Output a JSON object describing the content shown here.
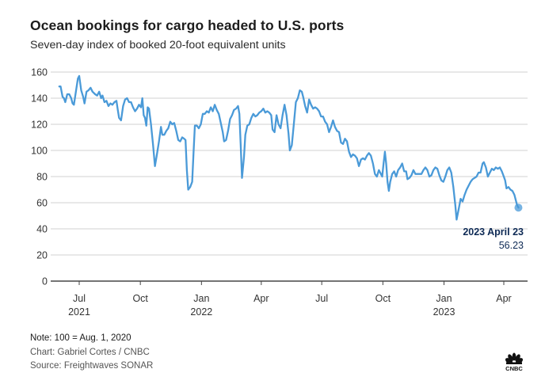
{
  "header": {
    "title": "Ocean bookings for cargo headed to U.S. ports",
    "subtitle": "Seven-day index of booked 20-foot equivalent units"
  },
  "footer": {
    "note": "Note: 100 = Aug. 1, 2020",
    "chart_credit": "Chart: Gabriel Cortes / CNBC",
    "source": "Source: Freightwaves SONAR",
    "logo": "cnbc-peacock-logo",
    "logo_text": "CNBC"
  },
  "colors": {
    "line": "#4a9ad8",
    "annotation": "#0e2a55",
    "grid": "#d0d0d0",
    "axis": "#222222"
  },
  "chart_data": {
    "type": "line",
    "title": "Ocean bookings for cargo headed to U.S. ports",
    "subtitle": "Seven-day index of booked 20-foot equivalent units",
    "xlabel": "",
    "ylabel": "",
    "ylim": [
      0,
      160
    ],
    "yticks": [
      0,
      20,
      40,
      60,
      80,
      100,
      120,
      140,
      160
    ],
    "grid": true,
    "legend": "none",
    "xlim": [
      "2021-05-25",
      "2023-05-05"
    ],
    "xticks": [
      {
        "date": "2021-07-01",
        "label": "Jul",
        "year": "2021"
      },
      {
        "date": "2021-10-01",
        "label": "Oct",
        "year": ""
      },
      {
        "date": "2022-01-01",
        "label": "Jan",
        "year": "2022"
      },
      {
        "date": "2022-04-01",
        "label": "Apr",
        "year": ""
      },
      {
        "date": "2022-07-01",
        "label": "Jul",
        "year": ""
      },
      {
        "date": "2022-10-01",
        "label": "Oct",
        "year": ""
      },
      {
        "date": "2023-01-01",
        "label": "Jan",
        "year": "2023"
      },
      {
        "date": "2023-04-01",
        "label": "Apr",
        "year": ""
      }
    ],
    "series": [
      {
        "name": "Seven-day index",
        "points": [
          [
            "2021-06-01",
            149
          ],
          [
            "2021-06-03",
            149
          ],
          [
            "2021-06-06",
            141
          ],
          [
            "2021-06-08",
            140
          ],
          [
            "2021-06-10",
            137
          ],
          [
            "2021-06-13",
            143
          ],
          [
            "2021-06-16",
            143
          ],
          [
            "2021-06-19",
            140
          ],
          [
            "2021-06-21",
            136
          ],
          [
            "2021-06-23",
            135
          ],
          [
            "2021-06-26",
            145
          ],
          [
            "2021-06-29",
            155
          ],
          [
            "2021-07-01",
            157
          ],
          [
            "2021-07-04",
            146
          ],
          [
            "2021-07-07",
            141
          ],
          [
            "2021-07-09",
            136
          ],
          [
            "2021-07-12",
            145
          ],
          [
            "2021-07-15",
            146
          ],
          [
            "2021-07-18",
            148
          ],
          [
            "2021-07-21",
            145
          ],
          [
            "2021-07-25",
            143
          ],
          [
            "2021-07-28",
            142
          ],
          [
            "2021-07-31",
            145
          ],
          [
            "2021-08-03",
            140
          ],
          [
            "2021-08-05",
            142
          ],
          [
            "2021-08-08",
            137
          ],
          [
            "2021-08-11",
            138
          ],
          [
            "2021-08-14",
            134
          ],
          [
            "2021-08-17",
            136
          ],
          [
            "2021-08-20",
            135
          ],
          [
            "2021-08-23",
            137
          ],
          [
            "2021-08-26",
            138
          ],
          [
            "2021-08-28",
            131
          ],
          [
            "2021-08-30",
            125
          ],
          [
            "2021-09-02",
            123
          ],
          [
            "2021-09-05",
            134
          ],
          [
            "2021-09-08",
            139
          ],
          [
            "2021-09-11",
            140
          ],
          [
            "2021-09-14",
            137
          ],
          [
            "2021-09-17",
            137
          ],
          [
            "2021-09-20",
            133
          ],
          [
            "2021-09-23",
            130
          ],
          [
            "2021-09-26",
            132
          ],
          [
            "2021-09-29",
            135
          ],
          [
            "2021-10-02",
            133
          ],
          [
            "2021-10-04",
            140
          ],
          [
            "2021-10-06",
            127
          ],
          [
            "2021-10-08",
            125
          ],
          [
            "2021-10-10",
            119
          ],
          [
            "2021-10-12",
            133
          ],
          [
            "2021-10-14",
            132
          ],
          [
            "2021-10-17",
            120
          ],
          [
            "2021-10-20",
            105
          ],
          [
            "2021-10-23",
            88
          ],
          [
            "2021-10-26",
            97
          ],
          [
            "2021-10-29",
            107
          ],
          [
            "2021-11-01",
            118
          ],
          [
            "2021-11-03",
            112
          ],
          [
            "2021-11-06",
            112
          ],
          [
            "2021-11-09",
            115
          ],
          [
            "2021-11-12",
            117
          ],
          [
            "2021-11-15",
            122
          ],
          [
            "2021-11-18",
            120
          ],
          [
            "2021-11-21",
            121
          ],
          [
            "2021-11-24",
            115
          ],
          [
            "2021-11-27",
            108
          ],
          [
            "2021-11-30",
            107
          ],
          [
            "2021-12-03",
            110
          ],
          [
            "2021-12-06",
            109
          ],
          [
            "2021-12-08",
            108
          ],
          [
            "2021-12-10",
            85
          ],
          [
            "2021-12-12",
            70
          ],
          [
            "2021-12-15",
            72
          ],
          [
            "2021-12-18",
            76
          ],
          [
            "2021-12-20",
            98
          ],
          [
            "2021-12-22",
            119
          ],
          [
            "2021-12-25",
            119
          ],
          [
            "2021-12-28",
            117
          ],
          [
            "2021-12-31",
            120
          ],
          [
            "2022-01-03",
            128
          ],
          [
            "2022-01-06",
            128
          ],
          [
            "2022-01-09",
            130
          ],
          [
            "2022-01-12",
            129
          ],
          [
            "2022-01-15",
            133
          ],
          [
            "2022-01-18",
            130
          ],
          [
            "2022-01-21",
            135
          ],
          [
            "2022-01-24",
            131
          ],
          [
            "2022-01-27",
            128
          ],
          [
            "2022-01-30",
            121
          ],
          [
            "2022-02-02",
            114
          ],
          [
            "2022-02-04",
            107
          ],
          [
            "2022-02-07",
            108
          ],
          [
            "2022-02-10",
            115
          ],
          [
            "2022-02-13",
            124
          ],
          [
            "2022-02-16",
            127
          ],
          [
            "2022-02-19",
            131
          ],
          [
            "2022-02-22",
            132
          ],
          [
            "2022-02-25",
            134
          ],
          [
            "2022-02-27",
            128
          ],
          [
            "2022-03-01",
            105
          ],
          [
            "2022-03-03",
            79
          ],
          [
            "2022-03-06",
            95
          ],
          [
            "2022-03-08",
            112
          ],
          [
            "2022-03-11",
            119
          ],
          [
            "2022-03-14",
            120
          ],
          [
            "2022-03-17",
            125
          ],
          [
            "2022-03-20",
            128
          ],
          [
            "2022-03-23",
            126
          ],
          [
            "2022-03-26",
            127
          ],
          [
            "2022-03-29",
            129
          ],
          [
            "2022-04-01",
            130
          ],
          [
            "2022-04-04",
            132
          ],
          [
            "2022-04-07",
            129
          ],
          [
            "2022-04-10",
            130
          ],
          [
            "2022-04-13",
            129
          ],
          [
            "2022-04-16",
            127
          ],
          [
            "2022-04-18",
            116
          ],
          [
            "2022-04-21",
            114
          ],
          [
            "2022-04-24",
            127
          ],
          [
            "2022-04-27",
            120
          ],
          [
            "2022-04-30",
            117
          ],
          [
            "2022-05-03",
            127
          ],
          [
            "2022-05-06",
            135
          ],
          [
            "2022-05-09",
            127
          ],
          [
            "2022-05-12",
            113
          ],
          [
            "2022-05-14",
            100
          ],
          [
            "2022-05-17",
            104
          ],
          [
            "2022-05-20",
            120
          ],
          [
            "2022-05-23",
            137
          ],
          [
            "2022-05-26",
            140
          ],
          [
            "2022-05-29",
            146
          ],
          [
            "2022-06-01",
            145
          ],
          [
            "2022-06-03",
            141
          ],
          [
            "2022-06-06",
            134
          ],
          [
            "2022-06-09",
            129
          ],
          [
            "2022-06-12",
            139
          ],
          [
            "2022-06-15",
            135
          ],
          [
            "2022-06-18",
            132
          ],
          [
            "2022-06-21",
            133
          ],
          [
            "2022-06-24",
            132
          ],
          [
            "2022-06-27",
            130
          ],
          [
            "2022-06-30",
            126
          ],
          [
            "2022-07-03",
            126
          ],
          [
            "2022-07-06",
            122
          ],
          [
            "2022-07-09",
            120
          ],
          [
            "2022-07-12",
            114
          ],
          [
            "2022-07-15",
            118
          ],
          [
            "2022-07-18",
            123
          ],
          [
            "2022-07-21",
            118
          ],
          [
            "2022-07-24",
            115
          ],
          [
            "2022-07-27",
            114
          ],
          [
            "2022-07-30",
            106
          ],
          [
            "2022-08-02",
            105
          ],
          [
            "2022-08-05",
            109
          ],
          [
            "2022-08-08",
            107
          ],
          [
            "2022-08-11",
            99
          ],
          [
            "2022-08-14",
            95
          ],
          [
            "2022-08-17",
            97
          ],
          [
            "2022-08-20",
            96
          ],
          [
            "2022-08-23",
            94
          ],
          [
            "2022-08-26",
            88
          ],
          [
            "2022-08-29",
            93
          ],
          [
            "2022-09-01",
            94
          ],
          [
            "2022-09-04",
            93
          ],
          [
            "2022-09-07",
            96
          ],
          [
            "2022-09-10",
            98
          ],
          [
            "2022-09-13",
            96
          ],
          [
            "2022-09-16",
            90
          ],
          [
            "2022-09-19",
            82
          ],
          [
            "2022-09-22",
            80
          ],
          [
            "2022-09-25",
            85
          ],
          [
            "2022-09-28",
            82
          ],
          [
            "2022-09-30",
            80
          ],
          [
            "2022-10-02",
            90
          ],
          [
            "2022-10-04",
            99
          ],
          [
            "2022-10-06",
            90
          ],
          [
            "2022-10-08",
            76
          ],
          [
            "2022-10-10",
            69
          ],
          [
            "2022-10-12",
            76
          ],
          [
            "2022-10-15",
            82
          ],
          [
            "2022-10-18",
            84
          ],
          [
            "2022-10-21",
            80
          ],
          [
            "2022-10-24",
            85
          ],
          [
            "2022-10-27",
            87
          ],
          [
            "2022-10-30",
            90
          ],
          [
            "2022-11-02",
            84
          ],
          [
            "2022-11-05",
            84
          ],
          [
            "2022-11-07",
            78
          ],
          [
            "2022-11-10",
            79
          ],
          [
            "2022-11-13",
            81
          ],
          [
            "2022-11-16",
            85
          ],
          [
            "2022-11-19",
            82
          ],
          [
            "2022-11-22",
            82
          ],
          [
            "2022-11-25",
            82
          ],
          [
            "2022-11-28",
            82
          ],
          [
            "2022-12-01",
            85
          ],
          [
            "2022-12-04",
            87
          ],
          [
            "2022-12-07",
            85
          ],
          [
            "2022-12-10",
            80
          ],
          [
            "2022-12-13",
            81
          ],
          [
            "2022-12-16",
            85
          ],
          [
            "2022-12-19",
            87
          ],
          [
            "2022-12-22",
            86
          ],
          [
            "2022-12-25",
            81
          ],
          [
            "2022-12-28",
            77
          ],
          [
            "2022-12-31",
            76
          ],
          [
            "2023-01-03",
            80
          ],
          [
            "2023-01-06",
            85
          ],
          [
            "2023-01-09",
            87
          ],
          [
            "2023-01-12",
            83
          ],
          [
            "2023-01-15",
            72
          ],
          [
            "2023-01-18",
            58
          ],
          [
            "2023-01-20",
            47
          ],
          [
            "2023-01-23",
            55
          ],
          [
            "2023-01-26",
            63
          ],
          [
            "2023-01-29",
            61
          ],
          [
            "2023-02-01",
            66
          ],
          [
            "2023-02-04",
            70
          ],
          [
            "2023-02-07",
            73
          ],
          [
            "2023-02-10",
            76
          ],
          [
            "2023-02-13",
            78
          ],
          [
            "2023-02-16",
            79
          ],
          [
            "2023-02-19",
            80
          ],
          [
            "2023-02-22",
            83
          ],
          [
            "2023-02-25",
            83
          ],
          [
            "2023-02-28",
            90
          ],
          [
            "2023-03-02",
            91
          ],
          [
            "2023-03-05",
            87
          ],
          [
            "2023-03-08",
            80
          ],
          [
            "2023-03-11",
            83
          ],
          [
            "2023-03-14",
            86
          ],
          [
            "2023-03-17",
            85
          ],
          [
            "2023-03-20",
            87
          ],
          [
            "2023-03-23",
            86
          ],
          [
            "2023-03-26",
            87
          ],
          [
            "2023-03-29",
            84
          ],
          [
            "2023-04-01",
            80
          ],
          [
            "2023-04-03",
            77
          ],
          [
            "2023-04-05",
            71
          ],
          [
            "2023-04-08",
            72
          ],
          [
            "2023-04-11",
            70
          ],
          [
            "2023-04-14",
            69
          ],
          [
            "2023-04-17",
            66
          ],
          [
            "2023-04-19",
            62
          ],
          [
            "2023-04-21",
            58
          ],
          [
            "2023-04-23",
            56.23
          ]
        ]
      }
    ],
    "annotation": {
      "date": "2023-04-23",
      "label": "2023 April 23",
      "value": 56.23,
      "value_label": "56.23"
    }
  }
}
